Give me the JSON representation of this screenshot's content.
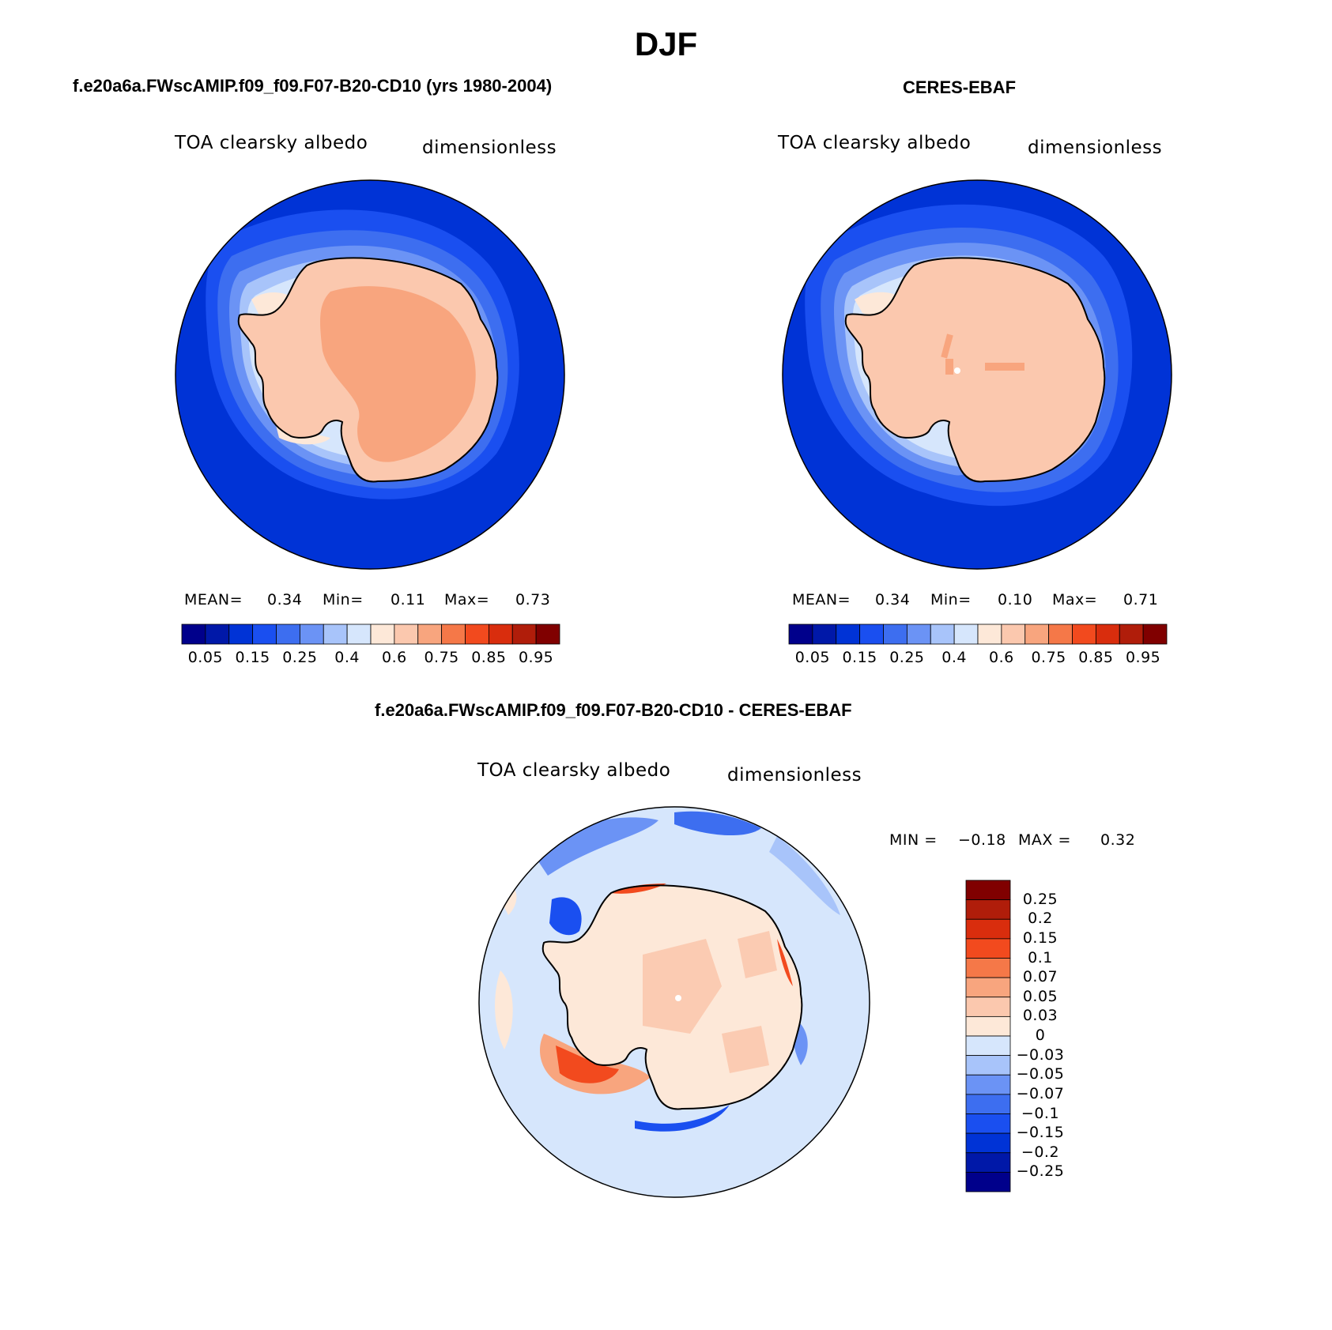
{
  "figure": {
    "season": "DJF",
    "panel1_title": "f.e20a6a.FWscAMIP.f09_f09.F07-B20-CD10 (yrs 1980-2004)",
    "panel2_title": "CERES-EBAF",
    "diff_title": "f.e20a6a.FWscAMIP.f09_f09.F07-B20-CD10 - CERES-EBAF"
  },
  "panel1": {
    "variable": "TOA clearsky albedo",
    "units": "dimensionless",
    "mean_label": "MEAN=",
    "mean": "0.34",
    "min_label": "Min=",
    "min": "0.11",
    "max_label": "Max=",
    "max": "0.73"
  },
  "panel2": {
    "variable": "TOA clearsky albedo",
    "units": "dimensionless",
    "mean_label": "MEAN=",
    "mean": "0.34",
    "min_label": "Min=",
    "min": "0.10",
    "max_label": "Max=",
    "max": "0.71"
  },
  "diff": {
    "variable": "TOA clearsky albedo",
    "units": "dimensionless",
    "min_label": "MIN =",
    "min": "−0.18",
    "max_label": "MAX =",
    "max": "0.32"
  },
  "colorbar_main": {
    "colors": [
      "#00008b",
      "#0018a8",
      "#0033d6",
      "#1a4ff0",
      "#3d6ef0",
      "#6b93f5",
      "#a8c4fa",
      "#d6e6fc",
      "#fde8d8",
      "#fbc8ae",
      "#f8a57e",
      "#f57848",
      "#f24a1e",
      "#d92d0d",
      "#b01d0a",
      "#800000"
    ],
    "labels": [
      "0.05",
      "0.15",
      "0.25",
      "0.4",
      "0.6",
      "0.75",
      "0.85",
      "0.95"
    ]
  },
  "colorbar_diff": {
    "colors": [
      "#800000",
      "#b01d0a",
      "#d92d0d",
      "#f24a1e",
      "#f57848",
      "#f8a57e",
      "#fbc8ae",
      "#fde8d8",
      "#d6e6fc",
      "#a8c4fa",
      "#6b93f5",
      "#3d6ef0",
      "#1a4ff0",
      "#0033d6",
      "#0018a8",
      "#00008b"
    ],
    "labels": [
      "0.25",
      "0.2",
      "0.15",
      "0.1",
      "0.07",
      "0.05",
      "0.03",
      "0",
      "−0.03",
      "−0.05",
      "−0.07",
      "−0.1",
      "−0.15",
      "−0.2",
      "−0.25"
    ]
  }
}
